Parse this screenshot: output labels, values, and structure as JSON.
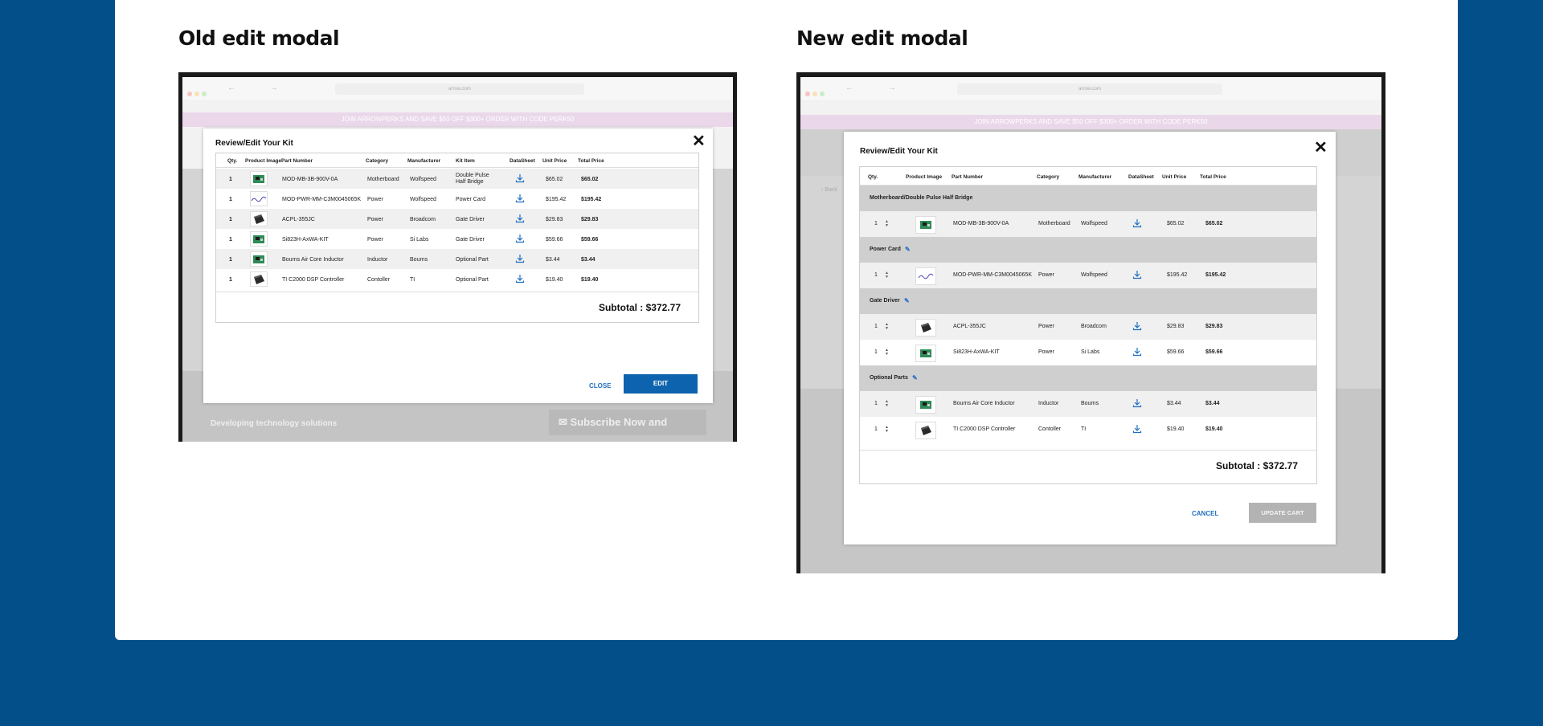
{
  "old": {
    "title": "Old edit modal",
    "site": {
      "url": "arrow.com",
      "promo": "JOIN ARROWPERKS AND SAVE $50 OFF $300+ ORDER WITH CODE PERK50",
      "footer_text": "Developing technology solutions",
      "subscribe": "Subscribe Now and"
    },
    "modal": {
      "title": "Review/Edit Your Kit",
      "headers": [
        "Qty.",
        "Product Image",
        "Part Number",
        "Category",
        "Manufacturer",
        "Kit Item",
        "DataSheet",
        "Unit Price",
        "Total Price"
      ],
      "rows": [
        {
          "qty": "1",
          "part": "MOD-MB-3B-900V-0A",
          "category": "Motherboard",
          "manufacturer": "Wolfspeed",
          "kit": "Double Pulse Half Bridge",
          "unit": "$65.02",
          "total": "$65.02",
          "image": "green-board"
        },
        {
          "qty": "1",
          "part": "MOD-PWR-MM-C3M0045065K",
          "category": "Power",
          "manufacturer": "Wolfspeed",
          "kit": "Power Card",
          "unit": "$195.42",
          "total": "$195.42",
          "image": "logo-text"
        },
        {
          "qty": "1",
          "part": "ACPL-355JC",
          "category": "Power",
          "manufacturer": "Broadcom",
          "kit": "Gate Driver",
          "unit": "$29.83",
          "total": "$29.83",
          "image": "black-chip"
        },
        {
          "qty": "1",
          "part": "Si823H-AxWA-KIT",
          "category": "Power",
          "manufacturer": "Si Labs",
          "kit": "Gate Driver",
          "unit": "$59.66",
          "total": "$59.66",
          "image": "green-board"
        },
        {
          "qty": "1",
          "part": "Bourns Air Core Inductor",
          "category": "Inductor",
          "manufacturer": "Bourns",
          "kit": "Optional Part",
          "unit": "$3.44",
          "total": "$3.44",
          "image": "green-board"
        },
        {
          "qty": "1",
          "part": "TI C2000 DSP Controller",
          "category": "Contoller",
          "manufacturer": "TI",
          "kit": "Optional Part",
          "unit": "$19.40",
          "total": "$19.40",
          "image": "black-chip"
        }
      ],
      "subtotal": "Subtotal : $372.77",
      "close_label": "CLOSE",
      "edit_label": "EDIT"
    }
  },
  "new": {
    "title": "New edit modal",
    "site": {
      "url": "arrow.com",
      "promo": "JOIN ARROWPERKS AND SAVE $50 OFF $300+ ORDER WITH CODE PERK50",
      "back": "‹ Back"
    },
    "modal": {
      "title": "Review/Edit Your Kit",
      "headers": [
        "Qty.",
        "Product Image",
        "Part Number",
        "Category",
        "Manufacturer",
        "DataSheet",
        "Unit Price",
        "Total Price"
      ],
      "groups": [
        {
          "name": "Motherboard/Double Pulse Half Bridge",
          "editable": false,
          "rows": [
            {
              "qty": "1",
              "part": "MOD-MB-3B-900V-0A",
              "category": "Motherboard",
              "manufacturer": "Wolfspeed",
              "unit": "$65.02",
              "total": "$65.02",
              "image": "green-board"
            }
          ]
        },
        {
          "name": "Power Card",
          "editable": true,
          "rows": [
            {
              "qty": "1",
              "part": "MOD-PWR-MM-C3M0045065K",
              "category": "Power",
              "manufacturer": "Wolfspeed",
              "unit": "$195.42",
              "total": "$195.42",
              "image": "logo-text"
            }
          ]
        },
        {
          "name": "Gate Driver",
          "editable": true,
          "rows": [
            {
              "qty": "1",
              "part": "ACPL-355JC",
              "category": "Power",
              "manufacturer": "Broadcom",
              "unit": "$29.83",
              "total": "$29.83",
              "image": "black-chip"
            },
            {
              "qty": "1",
              "part": "Si823H-AxWA-KIT",
              "category": "Power",
              "manufacturer": "Si Labs",
              "unit": "$59.66",
              "total": "$59.66",
              "image": "green-board"
            }
          ]
        },
        {
          "name": "Optional Parts",
          "editable": true,
          "rows": [
            {
              "qty": "1",
              "part": "Bourns Air Core Inductor",
              "category": "Inductor",
              "manufacturer": "Bourns",
              "unit": "$3.44",
              "total": "$3.44",
              "image": "green-board"
            },
            {
              "qty": "1",
              "part": "TI C2000 DSP Controller",
              "category": "Contoller",
              "manufacturer": "TI",
              "unit": "$19.40",
              "total": "$19.40",
              "image": "black-chip"
            }
          ]
        }
      ],
      "subtotal": "Subtotal : $372.77",
      "cancel_label": "CANCEL",
      "update_label": "UPDATE CART"
    }
  },
  "colors": {
    "page_bg": "#034f8a",
    "primary_button": "#0d63ad",
    "link": "#1f6fbf",
    "disabled_button": "#b3b3b3"
  }
}
